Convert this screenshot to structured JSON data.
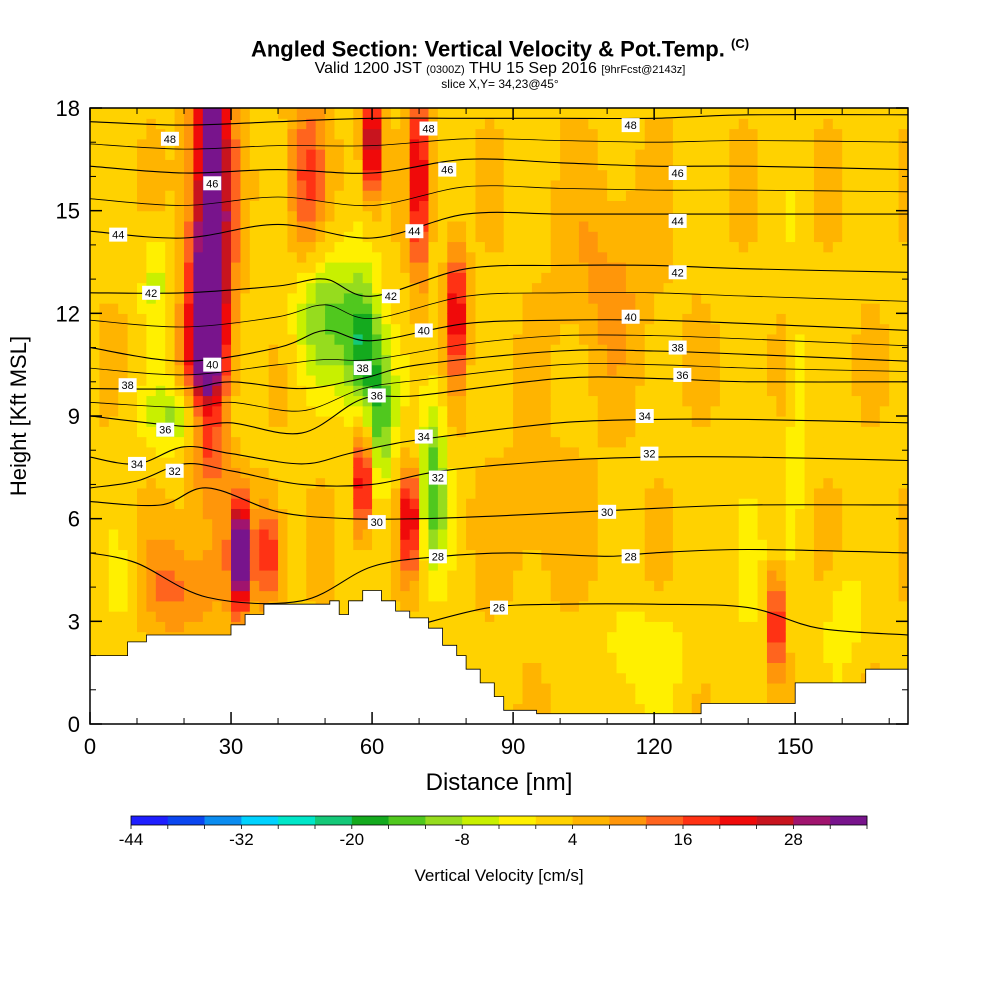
{
  "header": {
    "title_main": "Angled Section: Vertical Velocity & Pot.Temp.",
    "title_unit": "(C)",
    "valid_prefix": "Valid 1200 JST",
    "valid_utc": "(0300Z)",
    "valid_date": "THU 15 Sep 2016",
    "valid_fcst": "[9hrFcst@2143z]",
    "slice": "slice X,Y= 34,23@45°"
  },
  "chart_data": {
    "type": "heatmap",
    "xlabel": "Distance [nm]",
    "ylabel": "Height [Kft MSL]",
    "xlim": [
      0,
      174
    ],
    "ylim": [
      0,
      18
    ],
    "x_ticks": [
      0,
      30,
      60,
      90,
      120,
      150
    ],
    "y_ticks": [
      0,
      3,
      6,
      9,
      12,
      15,
      18
    ],
    "colorbar": {
      "label": "Vertical Velocity [cm/s]",
      "min": -44,
      "max": 36,
      "step": 4,
      "tick_labels": [
        -44,
        -32,
        -20,
        -8,
        4,
        16,
        28
      ],
      "colors": [
        "#1e1eff",
        "#0a46f0",
        "#0a8cf0",
        "#00d2ff",
        "#00e6c8",
        "#14c878",
        "#14aa1e",
        "#50c81e",
        "#96dc1e",
        "#c8f000",
        "#fff000",
        "#ffd200",
        "#ffb400",
        "#ff960a",
        "#ff641e",
        "#ff3214",
        "#f00a0a",
        "#c8141e",
        "#a0146e",
        "#78148c"
      ]
    },
    "terrain": [
      [
        0,
        2
      ],
      [
        5,
        2
      ],
      [
        8,
        2.4
      ],
      [
        12,
        2.6
      ],
      [
        15,
        2.6
      ],
      [
        20,
        2.6
      ],
      [
        25,
        2.6
      ],
      [
        30,
        2.9
      ],
      [
        33,
        3.2
      ],
      [
        37,
        3.5
      ],
      [
        44,
        3.5
      ],
      [
        48,
        3.5
      ],
      [
        51,
        3.6
      ],
      [
        53,
        3.2
      ],
      [
        55,
        3.6
      ],
      [
        58,
        3.9
      ],
      [
        62,
        3.6
      ],
      [
        65,
        3.3
      ],
      [
        68,
        3.1
      ],
      [
        72,
        2.8
      ],
      [
        75,
        2.3
      ],
      [
        78,
        2.0
      ],
      [
        80,
        1.6
      ],
      [
        83,
        1.2
      ],
      [
        86,
        0.8
      ],
      [
        88,
        0.4
      ],
      [
        95,
        0.3
      ],
      [
        120,
        0.3
      ],
      [
        128,
        0.3
      ],
      [
        130,
        0.6
      ],
      [
        142,
        0.6
      ],
      [
        145,
        0.6
      ],
      [
        150,
        1.2
      ],
      [
        158,
        1.2
      ],
      [
        165,
        1.6
      ],
      [
        174,
        1.6
      ]
    ],
    "updrafts": [
      [
        26,
        15,
        4,
        6,
        40
      ],
      [
        24,
        11,
        4,
        3,
        20
      ],
      [
        32,
        5,
        2,
        1.5,
        42
      ],
      [
        38,
        5,
        3,
        1.5,
        18
      ],
      [
        58,
        7,
        1.8,
        1.5,
        26
      ],
      [
        68,
        6,
        2,
        1.5,
        24
      ],
      [
        70,
        16,
        2,
        3,
        22
      ],
      [
        78,
        12,
        2,
        2,
        22
      ],
      [
        60,
        17,
        2,
        1.5,
        30
      ],
      [
        146,
        3,
        1.6,
        1.5,
        22
      ],
      [
        46,
        16,
        4,
        2.5,
        14
      ],
      [
        110,
        13,
        10,
        3,
        6
      ],
      [
        95,
        6,
        12,
        2,
        4
      ],
      [
        18,
        4,
        10,
        1.5,
        10
      ]
    ],
    "downdrafts": [
      [
        50,
        12,
        7,
        2,
        -14
      ],
      [
        58,
        11,
        4,
        2,
        -22
      ],
      [
        62,
        9,
        3,
        2,
        -16
      ],
      [
        73,
        7,
        3,
        2.5,
        -18
      ],
      [
        20,
        9,
        8,
        1,
        -14
      ],
      [
        14,
        13,
        3,
        1.5,
        -8
      ],
      [
        8,
        4,
        5,
        1.5,
        -6
      ],
      [
        140,
        5,
        3,
        2,
        -10
      ],
      [
        160,
        3,
        4,
        1.5,
        -6
      ],
      [
        118,
        2,
        10,
        1.5,
        -6
      ],
      [
        150,
        10,
        2,
        4,
        -6
      ]
    ],
    "contours": [
      {
        "theta": 48,
        "points": [
          [
            0,
            17.6
          ],
          [
            20,
            17.5
          ],
          [
            40,
            17.6
          ],
          [
            60,
            17.7
          ],
          [
            80,
            17.7
          ],
          [
            100,
            17.7
          ],
          [
            120,
            17.7
          ],
          [
            140,
            17.8
          ],
          [
            174,
            17.8
          ]
        ]
      },
      {
        "theta": 46,
        "points": [
          [
            0,
            16.3
          ],
          [
            20,
            16.1
          ],
          [
            40,
            16.2
          ],
          [
            60,
            16.1
          ],
          [
            80,
            16.5
          ],
          [
            100,
            16.4
          ],
          [
            120,
            16.3
          ],
          [
            140,
            16.3
          ],
          [
            174,
            16.2
          ]
        ]
      },
      {
        "theta": 44,
        "points": [
          [
            0,
            14.4
          ],
          [
            20,
            14.2
          ],
          [
            40,
            14.6
          ],
          [
            60,
            14.2
          ],
          [
            80,
            14.9
          ],
          [
            100,
            14.9
          ],
          [
            120,
            14.9
          ],
          [
            140,
            14.9
          ],
          [
            174,
            14.9
          ]
        ]
      },
      {
        "theta": 42,
        "points": [
          [
            0,
            12.6
          ],
          [
            20,
            12.6
          ],
          [
            40,
            12.8
          ],
          [
            50,
            13
          ],
          [
            60,
            12.5
          ],
          [
            80,
            13.3
          ],
          [
            100,
            13.4
          ],
          [
            120,
            13.4
          ],
          [
            140,
            13.3
          ],
          [
            174,
            13.2
          ]
        ]
      },
      {
        "theta": 40,
        "points": [
          [
            0,
            11
          ],
          [
            20,
            10.6
          ],
          [
            40,
            11
          ],
          [
            50,
            11.5
          ],
          [
            60,
            11.2
          ],
          [
            80,
            11.7
          ],
          [
            100,
            11.8
          ],
          [
            120,
            11.8
          ],
          [
            140,
            11.7
          ],
          [
            174,
            11.5
          ]
        ]
      },
      {
        "theta": 38,
        "points": [
          [
            0,
            9.8
          ],
          [
            20,
            9.8
          ],
          [
            30,
            10
          ],
          [
            45,
            9.8
          ],
          [
            58,
            10.1
          ],
          [
            70,
            10.5
          ],
          [
            100,
            10.9
          ],
          [
            120,
            10.9
          ],
          [
            140,
            10.8
          ],
          [
            174,
            10.6
          ]
        ]
      },
      {
        "theta": 36,
        "points": [
          [
            0,
            9
          ],
          [
            20,
            8.7
          ],
          [
            30,
            8.8
          ],
          [
            45,
            8.5
          ],
          [
            58,
            9.5
          ],
          [
            70,
            9.6
          ],
          [
            100,
            10.1
          ],
          [
            120,
            10.1
          ],
          [
            140,
            10
          ],
          [
            174,
            10
          ]
        ]
      },
      {
        "theta": 34,
        "points": [
          [
            0,
            7.8
          ],
          [
            10,
            7.6
          ],
          [
            20,
            8.1
          ],
          [
            30,
            7.9
          ],
          [
            45,
            7.6
          ],
          [
            55,
            7.9
          ],
          [
            65,
            8.2
          ],
          [
            75,
            8.4
          ],
          [
            100,
            8.8
          ],
          [
            120,
            8.9
          ],
          [
            140,
            8.9
          ],
          [
            174,
            8.8
          ]
        ]
      },
      {
        "theta": 32,
        "points": [
          [
            0,
            6.9
          ],
          [
            10,
            7.1
          ],
          [
            20,
            7.6
          ],
          [
            30,
            7.4
          ],
          [
            45,
            7
          ],
          [
            60,
            7
          ],
          [
            75,
            7.4
          ],
          [
            100,
            7.7
          ],
          [
            120,
            7.8
          ],
          [
            140,
            7.8
          ],
          [
            174,
            7.7
          ]
        ]
      },
      {
        "theta": 30,
        "points": [
          [
            0,
            6.5
          ],
          [
            15,
            6.4
          ],
          [
            25,
            6.9
          ],
          [
            40,
            6.2
          ],
          [
            55,
            6
          ],
          [
            70,
            6
          ],
          [
            90,
            6.1
          ],
          [
            120,
            6.3
          ],
          [
            140,
            6.4
          ],
          [
            174,
            6.4
          ]
        ]
      },
      {
        "theta": 28,
        "points": [
          [
            0,
            5
          ],
          [
            10,
            4.7
          ],
          [
            25,
            3.7
          ],
          [
            45,
            3.6
          ],
          [
            60,
            4.6
          ],
          [
            75,
            4.9
          ],
          [
            90,
            5
          ],
          [
            110,
            4.9
          ],
          [
            120,
            5
          ],
          [
            140,
            5.1
          ],
          [
            174,
            5
          ]
        ]
      },
      {
        "theta": 26,
        "points": [
          [
            70,
            2.9
          ],
          [
            85,
            3.4
          ],
          [
            100,
            3.5
          ],
          [
            120,
            3.5
          ],
          [
            140,
            3.4
          ],
          [
            155,
            2.8
          ],
          [
            174,
            2.6
          ]
        ]
      }
    ],
    "contour_labels": [
      {
        "text": "48",
        "x": 17,
        "y": 17.1
      },
      {
        "text": "48",
        "x": 72,
        "y": 17.4
      },
      {
        "text": "48",
        "x": 115,
        "y": 17.5
      },
      {
        "text": "46",
        "x": 26,
        "y": 15.8
      },
      {
        "text": "46",
        "x": 76,
        "y": 16.2
      },
      {
        "text": "46",
        "x": 125,
        "y": 16.1
      },
      {
        "text": "44",
        "x": 6,
        "y": 14.3
      },
      {
        "text": "44",
        "x": 69,
        "y": 14.4
      },
      {
        "text": "44",
        "x": 125,
        "y": 14.7
      },
      {
        "text": "42",
        "x": 13,
        "y": 12.6
      },
      {
        "text": "42",
        "x": 64,
        "y": 12.5
      },
      {
        "text": "42",
        "x": 125,
        "y": 13.2
      },
      {
        "text": "40",
        "x": 26,
        "y": 10.5
      },
      {
        "text": "40",
        "x": 71,
        "y": 11.5
      },
      {
        "text": "40",
        "x": 115,
        "y": 11.9
      },
      {
        "text": "38",
        "x": 8,
        "y": 9.9
      },
      {
        "text": "38",
        "x": 58,
        "y": 10.4
      },
      {
        "text": "38",
        "x": 125,
        "y": 11
      },
      {
        "text": "36",
        "x": 16,
        "y": 8.6
      },
      {
        "text": "36",
        "x": 61,
        "y": 9.6
      },
      {
        "text": "36",
        "x": 126,
        "y": 10.2
      },
      {
        "text": "34",
        "x": 10,
        "y": 7.6
      },
      {
        "text": "34",
        "x": 71,
        "y": 8.4
      },
      {
        "text": "34",
        "x": 118,
        "y": 9
      },
      {
        "text": "32",
        "x": 18,
        "y": 7.4
      },
      {
        "text": "32",
        "x": 74,
        "y": 7.2
      },
      {
        "text": "32",
        "x": 119,
        "y": 7.9
      },
      {
        "text": "30",
        "x": 61,
        "y": 5.9
      },
      {
        "text": "30",
        "x": 110,
        "y": 6.2
      },
      {
        "text": "28",
        "x": 74,
        "y": 4.9
      },
      {
        "text": "28",
        "x": 115,
        "y": 4.9
      },
      {
        "text": "26",
        "x": 87,
        "y": 3.4
      }
    ]
  }
}
